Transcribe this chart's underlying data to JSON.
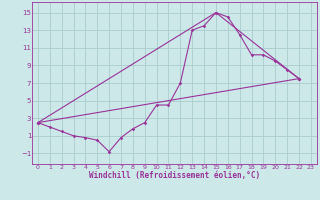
{
  "background_color": "#cce8e8",
  "line_color": "#993399",
  "grid_color": "#aacccc",
  "xlabel": "Windchill (Refroidissement éolien,°C)",
  "xlim": [
    -0.5,
    23.5
  ],
  "ylim": [
    -2.2,
    16.2
  ],
  "yticks": [
    -1,
    1,
    3,
    5,
    7,
    9,
    11,
    13,
    15
  ],
  "xticks": [
    0,
    1,
    2,
    3,
    4,
    5,
    6,
    7,
    8,
    9,
    10,
    11,
    12,
    13,
    14,
    15,
    16,
    17,
    18,
    19,
    20,
    21,
    22,
    23
  ],
  "series1_x": [
    0,
    1,
    2,
    3,
    4,
    5,
    6,
    7,
    8,
    9,
    10,
    11,
    12,
    13,
    14,
    15,
    16,
    17,
    18,
    19,
    20,
    21,
    22
  ],
  "series1_y": [
    2.5,
    2.0,
    1.5,
    1.0,
    0.8,
    0.5,
    -0.8,
    0.8,
    1.8,
    2.5,
    4.5,
    4.5,
    7.0,
    13.0,
    13.5,
    15.0,
    14.5,
    12.5,
    10.2,
    10.2,
    9.5,
    8.5,
    7.5
  ],
  "series2_x": [
    0,
    22
  ],
  "series2_y": [
    2.5,
    7.5
  ],
  "series3_x": [
    0,
    15,
    22
  ],
  "series3_y": [
    2.5,
    15.0,
    7.5
  ],
  "xlabel_fontsize": 5.5,
  "tick_fontsize": 5.0,
  "marker_size": 1.8,
  "line_width": 0.8
}
